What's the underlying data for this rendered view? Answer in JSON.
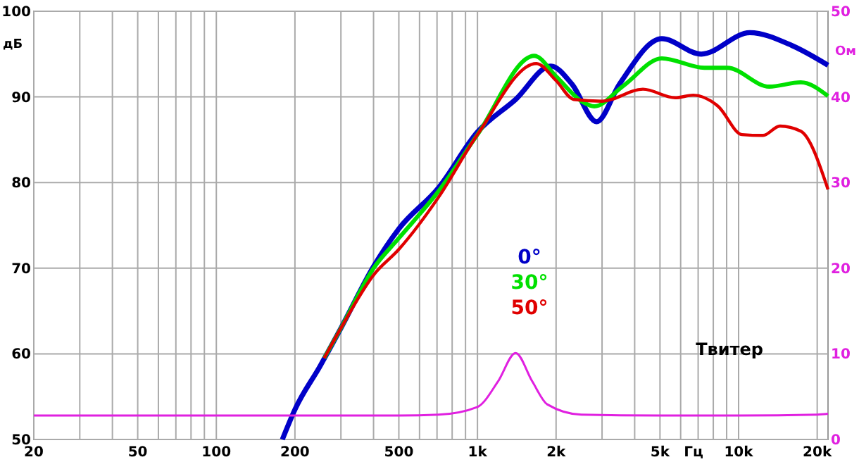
{
  "chart_data": {
    "type": "line",
    "xlabel": "Гц",
    "ylabel": "дБ",
    "y2label": "Ом",
    "log": "x",
    "grid": true,
    "legend": "bottom",
    "marker": "none",
    "line_style": "solid",
    "xlim": [
      20,
      22000
    ],
    "ylim": [
      50,
      100
    ],
    "y2lim": [
      0,
      50
    ],
    "xticks": [
      20,
      {
        "value": 30,
        "label": null
      },
      {
        "value": 40,
        "label": null
      },
      50,
      {
        "value": 60,
        "label": null
      },
      {
        "value": 70,
        "label": null
      },
      {
        "value": 80,
        "label": null
      },
      {
        "value": 90,
        "label": null
      },
      100,
      200,
      {
        "value": 300,
        "label": null
      },
      {
        "value": 400,
        "label": null
      },
      500,
      {
        "value": 600,
        "label": null
      },
      {
        "value": 700,
        "label": null
      },
      {
        "value": 800,
        "label": null
      },
      {
        "value": 900,
        "label": null
      },
      {
        "value": 1000,
        "label": "1k"
      },
      {
        "value": 2000,
        "label": "2k"
      },
      {
        "value": 3000,
        "label": null
      },
      {
        "value": 4000,
        "label": null
      },
      {
        "value": 5000,
        "label": "5k"
      },
      {
        "value": 6000,
        "label": null
      },
      {
        "value": 7000,
        "label": null
      },
      {
        "value": 8000,
        "label": null
      },
      {
        "value": 9000,
        "label": null
      },
      {
        "value": 10000,
        "label": "10k"
      },
      {
        "value": 20000,
        "label": "20k"
      }
    ],
    "yticks": [
      50,
      60,
      70,
      80,
      90,
      100
    ],
    "y2ticks": [
      0,
      10,
      20,
      30,
      40,
      50
    ],
    "annotations": [
      "Твитер"
    ],
    "series": [
      {
        "name": "0°",
        "color": "#0000c8",
        "x": [
          179,
          200,
          250,
          300,
          400,
          500,
          710,
          1000,
          1400,
          1910,
          2300,
          2860,
          3500,
          5080,
          7200,
          11040,
          16000,
          22000
        ],
        "values": [
          50,
          53.5,
          58.6,
          63,
          70.2,
          74.6,
          79.4,
          85.9,
          89.7,
          93.6,
          91.5,
          87.1,
          91.5,
          96.8,
          95,
          97.5,
          96,
          93.7
        ]
      },
      {
        "name": "30°",
        "color": "#00e000",
        "x": [
          259,
          300,
          400,
          500,
          710,
          1000,
          1650,
          2000,
          2530,
          2800,
          3620,
          5080,
          7400,
          9030,
          13100,
          17300,
          22000
        ],
        "values": [
          59.5,
          63,
          70,
          73.5,
          79,
          85.6,
          94.8,
          92.4,
          89.4,
          88.9,
          91.3,
          94.5,
          93.4,
          93.4,
          91.2,
          91.7,
          90.1
        ]
      },
      {
        "name": "50°",
        "color": "#e00000",
        "x": [
          259,
          300,
          400,
          500,
          710,
          1000,
          1680,
          2000,
          2340,
          3000,
          4300,
          5720,
          6700,
          8350,
          10300,
          12400,
          14400,
          17300,
          22000
        ],
        "values": [
          59.5,
          63,
          69.2,
          72.2,
          78.3,
          85.6,
          93.9,
          91.9,
          89.7,
          89.5,
          90.9,
          89.9,
          90.2,
          88.9,
          85.6,
          85.5,
          86.6,
          86,
          79.2
        ]
      },
      {
        "color": "#e020e0",
        "axis": "y2",
        "x": [
          20,
          100,
          500,
          710,
          1000,
          1200,
          1400,
          1620,
          1850,
          2500,
          5000,
          10000,
          20000,
          22000
        ],
        "values": [
          2.8,
          2.8,
          2.8,
          2.9,
          3.8,
          6.8,
          10.1,
          6.8,
          4.1,
          2.9,
          2.8,
          2.8,
          2.9,
          3.0
        ]
      }
    ]
  }
}
